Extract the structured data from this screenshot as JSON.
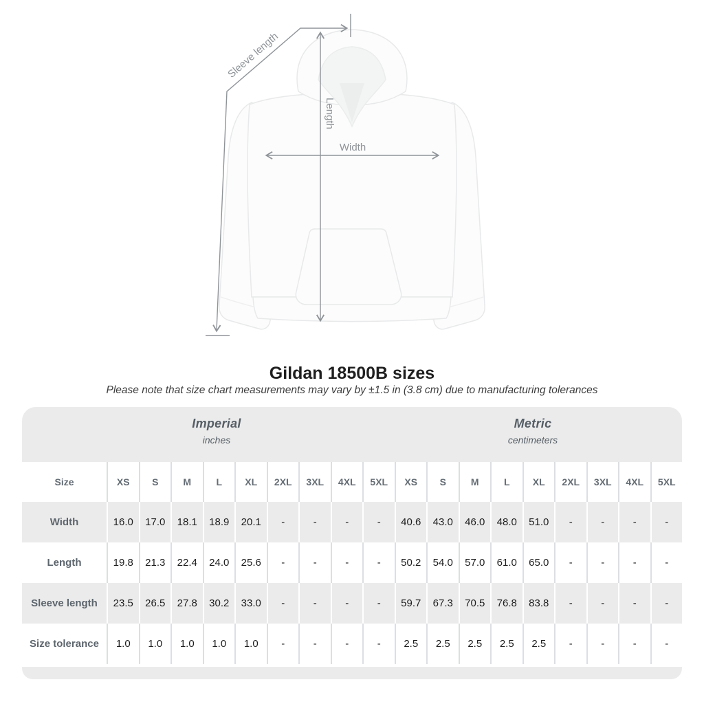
{
  "title": "Gildan 18500B sizes",
  "subtitle": "Please note that size chart measurements may vary by ±1.5 in (3.8 cm) due to manufacturing tolerances",
  "diagram": {
    "type": "hoodie-measurement-guide",
    "measurement_labels": {
      "sleeve_length": "Sleeve length",
      "length": "Length",
      "width": "Width"
    },
    "line_color": "#8f9499"
  },
  "colors": {
    "band_gray": "#ebebeb",
    "header_text": "#5d656d",
    "value_text": "#1e1e1e",
    "separator_on_white": "#dcdfe1",
    "separator_on_gray": "#ffffff"
  },
  "chart_data": {
    "type": "table",
    "title": "Gildan 18500B sizes",
    "size_column_header": "Size",
    "sizes": [
      "XS",
      "S",
      "M",
      "L",
      "XL",
      "2XL",
      "3XL",
      "4XL",
      "5XL"
    ],
    "groups": [
      {
        "name": "Imperial",
        "unit": "inches"
      },
      {
        "name": "Metric",
        "unit": "centimeters"
      }
    ],
    "rows": [
      {
        "label": "Width",
        "imperial": [
          "16.0",
          "17.0",
          "18.1",
          "18.9",
          "20.1",
          "-",
          "-",
          "-",
          "-"
        ],
        "metric": [
          "40.6",
          "43.0",
          "46.0",
          "48.0",
          "51.0",
          "-",
          "-",
          "-",
          "-"
        ]
      },
      {
        "label": "Length",
        "imperial": [
          "19.8",
          "21.3",
          "22.4",
          "24.0",
          "25.6",
          "-",
          "-",
          "-",
          "-"
        ],
        "metric": [
          "50.2",
          "54.0",
          "57.0",
          "61.0",
          "65.0",
          "-",
          "-",
          "-",
          "-"
        ]
      },
      {
        "label": "Sleeve length",
        "imperial": [
          "23.5",
          "26.5",
          "27.8",
          "30.2",
          "33.0",
          "-",
          "-",
          "-",
          "-"
        ],
        "metric": [
          "59.7",
          "67.3",
          "70.5",
          "76.8",
          "83.8",
          "-",
          "-",
          "-",
          "-"
        ]
      },
      {
        "label": "Size tolerance",
        "imperial": [
          "1.0",
          "1.0",
          "1.0",
          "1.0",
          "1.0",
          "-",
          "-",
          "-",
          "-"
        ],
        "metric": [
          "2.5",
          "2.5",
          "2.5",
          "2.5",
          "2.5",
          "-",
          "-",
          "-",
          "-"
        ]
      }
    ]
  }
}
